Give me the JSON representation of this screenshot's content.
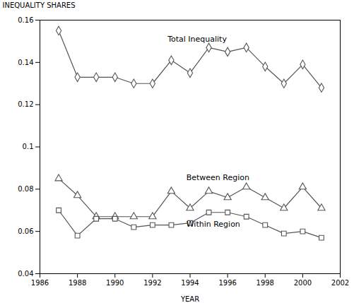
{
  "chart_data": {
    "type": "line",
    "x": [
      1987,
      1988,
      1989,
      1990,
      1991,
      1992,
      1993,
      1994,
      1995,
      1996,
      1997,
      1998,
      1999,
      2000,
      2001
    ],
    "series": [
      {
        "name": "Total Inequality",
        "color": "#555555",
        "marker": "diamond",
        "values": [
          0.155,
          0.133,
          0.133,
          0.133,
          0.13,
          0.13,
          0.141,
          0.135,
          0.147,
          0.145,
          0.147,
          0.138,
          0.13,
          0.139,
          0.128
        ]
      },
      {
        "name": "Between Region",
        "color": "#555555",
        "marker": "triangle",
        "values": [
          0.085,
          0.077,
          0.067,
          0.067,
          0.067,
          0.067,
          0.079,
          0.071,
          0.079,
          0.076,
          0.081,
          0.076,
          0.071,
          0.081,
          0.071
        ]
      },
      {
        "name": "Within Region",
        "color": "#555555",
        "marker": "square",
        "values": [
          0.07,
          0.058,
          0.066,
          0.066,
          0.062,
          0.063,
          0.063,
          0.064,
          0.069,
          0.069,
          0.067,
          0.063,
          0.059,
          0.06,
          0.057
        ]
      }
    ],
    "annotations": [
      {
        "text": "Total Inequality",
        "x": 1992.8,
        "y": 0.149
      },
      {
        "text": "Between Region",
        "x": 1993.8,
        "y": 0.0835
      },
      {
        "text": "Within Region",
        "x": 1993.8,
        "y": 0.0615
      }
    ],
    "xlabel": "YEAR",
    "ylabel": "INEQUALITY SHARES",
    "xlim": [
      1986,
      2002
    ],
    "ylim": [
      0.04,
      0.16
    ],
    "xticks": [
      1986,
      1988,
      1990,
      1992,
      1994,
      1996,
      1998,
      2000,
      2002
    ],
    "yticks": [
      0.04,
      0.06,
      0.08,
      0.1,
      0.12,
      0.14,
      0.16
    ],
    "grid": false
  }
}
